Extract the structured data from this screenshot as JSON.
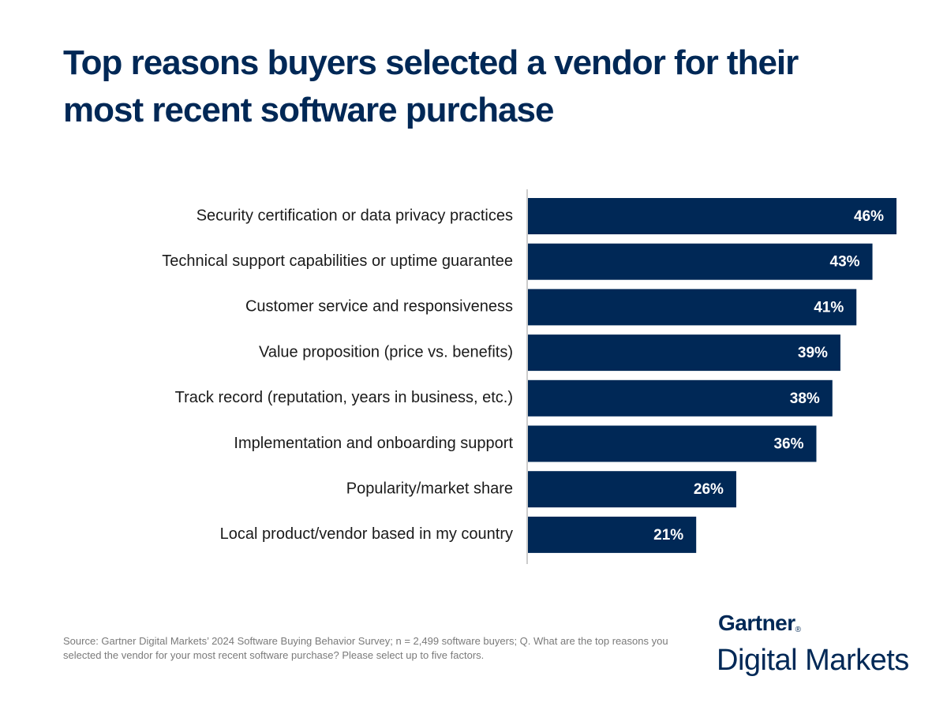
{
  "chart_data": {
    "type": "hbar",
    "title": "Top reasons buyers selected a vendor for their most recent software purchase",
    "categories": [
      "Security certification or data privacy practices",
      "Technical support capabilities or uptime guarantee",
      "Customer service and responsiveness",
      "Value proposition (price vs. benefits)",
      "Track record (reputation, years in business, etc.)",
      "Implementation and onboarding support",
      "Popularity/market share",
      "Local product/vendor based in my country"
    ],
    "values": [
      46,
      43,
      41,
      39,
      38,
      36,
      26,
      21
    ],
    "value_labels": [
      "46%",
      "43%",
      "41%",
      "39%",
      "38%",
      "36%",
      "26%",
      "21%"
    ],
    "color": "#002856"
  },
  "footer": {
    "source": "Source: Gartner Digital Markets’ 2024 Software Buying Behavior Survey; n = 2,499 software buyers; Q. What are the top reasons you selected the vendor for your most recent software purchase? Please select up to five factors.",
    "brand": "Gartner",
    "brand_mark": "®",
    "brand_sub": "Digital Markets"
  }
}
